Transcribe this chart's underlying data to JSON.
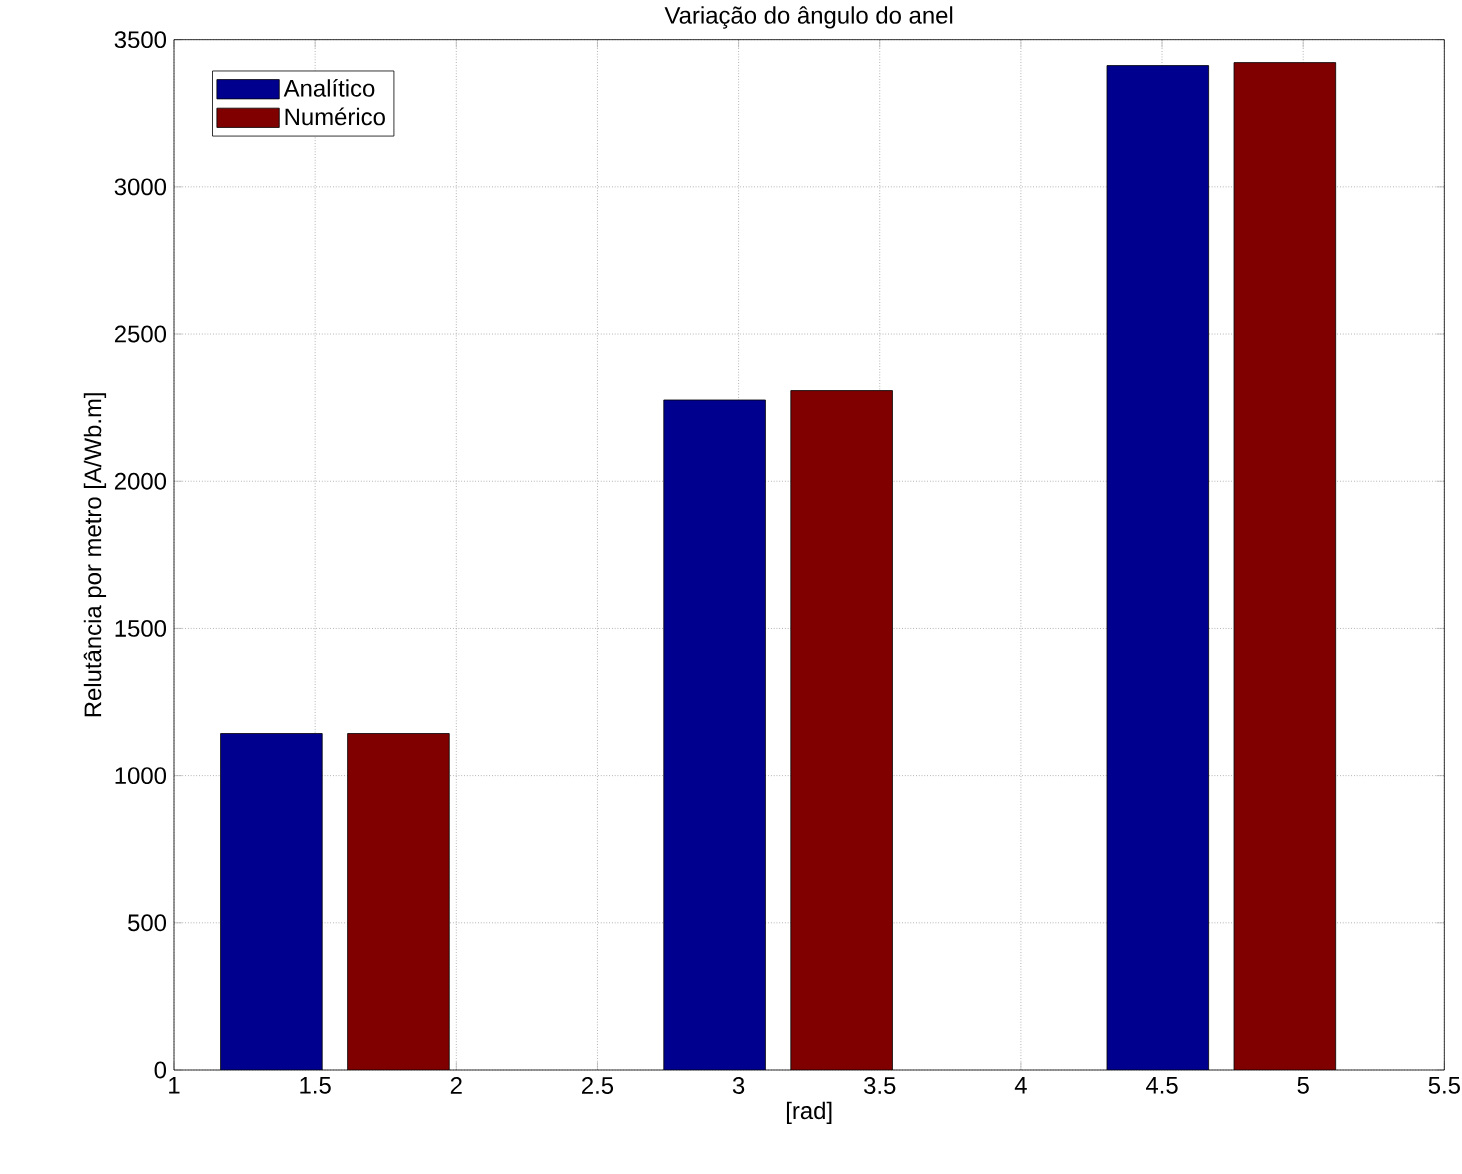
{
  "chart_data": {
    "type": "bar",
    "title": "Variação do ângulo do anel",
    "xlabel": "[rad]",
    "ylabel": "Relutância por metro [A/Wb.m]",
    "x": [
      1.57,
      3.14,
      4.71
    ],
    "series": [
      {
        "name": "Analítico",
        "color": "#00008f",
        "values": [
          1143,
          2276,
          3412
        ]
      },
      {
        "name": "Numérico",
        "color": "#800000",
        "values": [
          1143,
          2308,
          3422
        ]
      }
    ],
    "xlim": [
      1,
      5.5
    ],
    "xticks": [
      1,
      1.5,
      2,
      2.5,
      3,
      3.5,
      4,
      4.5,
      5,
      5.5
    ],
    "ylim": [
      0,
      3500
    ],
    "yticks": [
      0,
      500,
      1000,
      1500,
      2000,
      2500,
      3000,
      3500
    ],
    "grid": true,
    "legend": "top left"
  }
}
